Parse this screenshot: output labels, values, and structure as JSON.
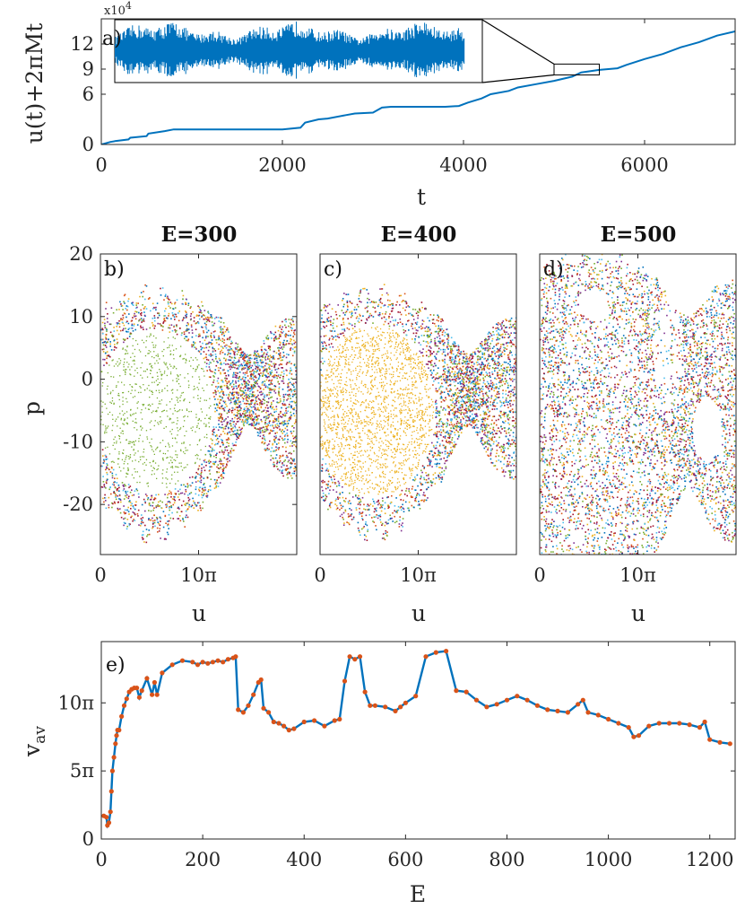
{
  "chart_data": [
    {
      "id": "a",
      "type": "line",
      "panel_label": "a)",
      "xlabel": "t",
      "ylabel": "u(t)+2πMt",
      "exponent_label": "x10",
      "exponent_power": "4",
      "xlim": [
        0,
        7000
      ],
      "ylim": [
        0,
        15
      ],
      "x_ticks": [
        0,
        2000,
        4000,
        6000
      ],
      "x_tick_labels": [
        "0",
        "2000",
        "4000",
        "6000"
      ],
      "y_ticks": [
        0,
        6,
        9,
        12
      ],
      "y_tick_labels": [
        "0",
        "6",
        "9",
        "12"
      ],
      "color": "#0072BD",
      "x": [
        0,
        100,
        150,
        300,
        320,
        500,
        520,
        700,
        800,
        1200,
        1600,
        2000,
        2200,
        2250,
        2400,
        2500,
        2700,
        2800,
        3000,
        3100,
        3200,
        3500,
        3800,
        3950,
        4050,
        4200,
        4300,
        4500,
        4600,
        4800,
        5000,
        5200,
        5300,
        5500,
        5700,
        5800,
        6000,
        6200,
        6400,
        6600,
        6800,
        7000
      ],
      "values": [
        0,
        0.3,
        0.4,
        0.6,
        0.8,
        1.0,
        1.3,
        1.6,
        1.8,
        1.8,
        1.8,
        1.8,
        2.0,
        2.6,
        3.0,
        3.1,
        3.5,
        3.7,
        3.8,
        4.4,
        4.5,
        4.5,
        4.5,
        4.6,
        5.0,
        5.5,
        6.0,
        6.4,
        6.8,
        7.2,
        7.6,
        8.1,
        8.6,
        8.9,
        9.1,
        9.5,
        10.2,
        10.8,
        11.6,
        12.2,
        13.0,
        13.5
      ],
      "zoom_box_x": [
        5000,
        5500
      ],
      "zoom_box_y": [
        8.3,
        9.6
      ]
    },
    {
      "id": "b",
      "type": "scatter",
      "panel_label": "b)",
      "title": "E=300",
      "xlabel": "u",
      "ylabel": "p",
      "xlim": [
        0,
        20
      ],
      "ylim": [
        -28,
        20
      ],
      "x_ticks": [
        0,
        10
      ],
      "x_tick_labels": [
        "0",
        "10π"
      ],
      "y_ticks": [
        20,
        10,
        0,
        -10,
        -20
      ],
      "y_tick_labels": [
        "20",
        "10",
        "0",
        "-10",
        "-20"
      ],
      "island_color": "#77AC30"
    },
    {
      "id": "c",
      "type": "scatter",
      "panel_label": "c)",
      "title": "E=400",
      "xlabel": "u",
      "xlim": [
        0,
        20
      ],
      "ylim": [
        -28,
        20
      ],
      "x_ticks": [
        0,
        10
      ],
      "x_tick_labels": [
        "0",
        "10π"
      ],
      "island_color": "#EDB120"
    },
    {
      "id": "d",
      "type": "scatter",
      "panel_label": "d)",
      "title": "E=500",
      "xlabel": "u",
      "xlim": [
        0,
        20
      ],
      "ylim": [
        -28,
        20
      ],
      "x_ticks": [
        0,
        10
      ],
      "x_tick_labels": [
        "0",
        "10π"
      ]
    },
    {
      "id": "e",
      "type": "line",
      "panel_label": "e)",
      "xlabel": "E",
      "ylabel": "v",
      "ylabel_sub": "av",
      "xlim": [
        0,
        1250
      ],
      "ylim": [
        0,
        14.5
      ],
      "x_ticks": [
        0,
        200,
        400,
        600,
        800,
        1000,
        1200
      ],
      "x_tick_labels": [
        "0",
        "200",
        "400",
        "600",
        "800",
        "1000",
        "1200"
      ],
      "y_ticks": [
        0,
        5,
        10
      ],
      "y_tick_labels": [
        "0",
        "5π",
        "10π"
      ],
      "line_color": "#0072BD",
      "marker_color": "#D95319",
      "x": [
        5,
        10,
        12,
        15,
        18,
        20,
        22,
        25,
        28,
        30,
        32,
        35,
        40,
        45,
        50,
        55,
        60,
        65,
        70,
        75,
        80,
        90,
        100,
        105,
        110,
        120,
        140,
        160,
        180,
        190,
        200,
        210,
        220,
        230,
        240,
        250,
        260,
        265,
        270,
        280,
        290,
        300,
        310,
        315,
        320,
        330,
        340,
        350,
        360,
        370,
        380,
        400,
        420,
        440,
        460,
        470,
        480,
        490,
        500,
        510,
        520,
        530,
        540,
        560,
        580,
        590,
        600,
        620,
        640,
        660,
        680,
        700,
        720,
        740,
        760,
        780,
        800,
        820,
        840,
        860,
        880,
        900,
        920,
        940,
        950,
        960,
        980,
        1000,
        1020,
        1040,
        1050,
        1060,
        1080,
        1100,
        1120,
        1140,
        1160,
        1180,
        1190,
        1200,
        1220,
        1240
      ],
      "values": [
        1.7,
        1.6,
        1.0,
        1.2,
        2.0,
        3.5,
        5.0,
        6.0,
        7.0,
        7.6,
        8.0,
        8.0,
        9.0,
        9.8,
        10.3,
        10.8,
        11.0,
        11.1,
        11.1,
        10.4,
        10.9,
        11.8,
        10.6,
        11.5,
        10.6,
        12.2,
        12.8,
        13.1,
        13.0,
        12.8,
        13.0,
        12.9,
        13.0,
        13.1,
        13.0,
        13.2,
        13.3,
        13.4,
        9.5,
        9.3,
        9.8,
        10.6,
        11.5,
        11.7,
        9.6,
        9.3,
        8.6,
        8.5,
        8.3,
        8.0,
        8.1,
        8.6,
        8.7,
        8.3,
        8.7,
        8.8,
        11.6,
        13.4,
        13.2,
        13.4,
        10.8,
        9.8,
        9.8,
        9.7,
        9.4,
        9.7,
        10.0,
        10.5,
        13.4,
        13.7,
        13.8,
        10.9,
        10.8,
        10.2,
        9.7,
        9.9,
        10.2,
        10.5,
        10.2,
        9.8,
        9.5,
        9.4,
        9.3,
        9.9,
        10.2,
        9.3,
        9.1,
        8.8,
        8.5,
        8.2,
        7.5,
        7.6,
        8.3,
        8.5,
        8.5,
        8.5,
        8.4,
        8.2,
        8.6,
        7.3,
        7.1,
        7.0
      ]
    }
  ]
}
